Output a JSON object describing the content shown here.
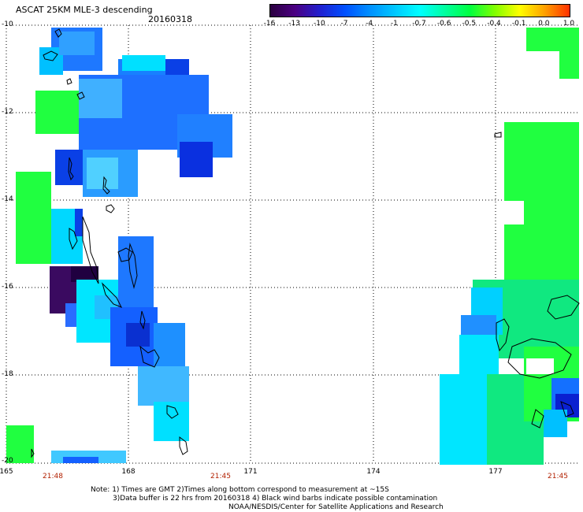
{
  "title": "ASCAT 25KM MLE-3 descending",
  "date": "20160318",
  "colorbar": {
    "ticks": [
      "-16",
      "-13",
      "-10",
      "-7",
      "-4",
      "-1",
      "-0.7",
      "-0.6",
      "-0.5",
      "-0.4",
      "-0.1",
      "0.0",
      "1.0"
    ],
    "colors": [
      "#2a003f",
      "#4b0082",
      "#2020d0",
      "#0050ff",
      "#0090ff",
      "#00c8ff",
      "#00ffff",
      "#00ffa0",
      "#00ff40",
      "#80ff00",
      "#ffff00",
      "#ffa000",
      "#ff3000"
    ]
  },
  "axes": {
    "lat_labels": [
      "-10",
      "-12",
      "-14",
      "-16",
      "-18",
      "-20"
    ],
    "lon_labels": [
      "165",
      "168",
      "171",
      "174",
      "177"
    ],
    "time_labels": [
      "21:48",
      "21:45",
      "21:45"
    ]
  },
  "notes": {
    "line1": "Note: 1) Times are GMT 2)Times along bottom correspond to measurement at ~15S",
    "line2": "3)Data buffer is 22 hrs from 20160318 4) Black wind barbs indicate possible contamination",
    "line3": "NOAA/NESDIS/Center for Satellite Applications and Research"
  },
  "map_layers": {
    "grid": "dotted",
    "coastlines": "black",
    "left_swath": "blue/cyan/green over Vanuatu region",
    "right_swath": "green/cyan over Fiji region"
  }
}
